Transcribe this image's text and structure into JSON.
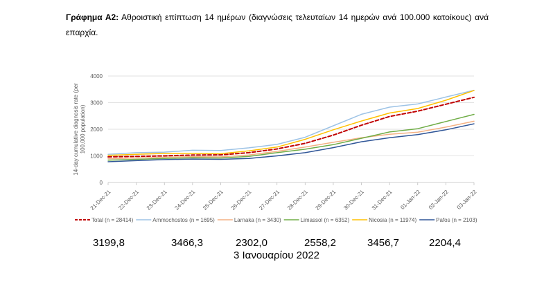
{
  "caption": {
    "label": "Γράφημα Α2:",
    "text": "Αθροιστική επίπτωση 14 ημέρων (διαγνώσεις τελευταίων 14 ημερών ανά 100.000 κατοίκους) ανά επαρχία."
  },
  "chart_data": {
    "type": "line",
    "ylabel": "14-day cumulative diagnosis rate (per 100,000 population)",
    "ylim": [
      0,
      4000
    ],
    "yticks": [
      "0",
      "1000",
      "2000",
      "3000",
      "4000"
    ],
    "grid": "horizontal",
    "legend_position": "bottom",
    "categories": [
      "21-Dec-21",
      "22-Dec-21",
      "23-Dec-21",
      "24-Dec-21",
      "25-Dec-21",
      "26-Dec-21",
      "27-Dec-21",
      "28-Dec-21",
      "29-Dec-21",
      "30-Dec-21",
      "31-Dec-21",
      "01-Jan-22",
      "02-Jan-22",
      "03-Jan-22"
    ],
    "series": [
      {
        "name": "Total (n = 28414)",
        "color": "#C00000",
        "dashed": true,
        "values": [
          960,
          980,
          1000,
          1030,
          1040,
          1120,
          1260,
          1470,
          1780,
          2150,
          2480,
          2680,
          2940,
          3200
        ]
      },
      {
        "name": "Ammochostos (n = 1695)",
        "color": "#9DC3E6",
        "dashed": false,
        "values": [
          1060,
          1120,
          1140,
          1210,
          1200,
          1300,
          1430,
          1700,
          2130,
          2560,
          2830,
          2950,
          3210,
          3466
        ]
      },
      {
        "name": "Larnaka (n = 3430)",
        "color": "#F4B183",
        "dashed": false,
        "values": [
          890,
          920,
          950,
          970,
          960,
          1030,
          1170,
          1330,
          1510,
          1680,
          1810,
          1890,
          2080,
          2302
        ]
      },
      {
        "name": "Limassol (n = 6352)",
        "color": "#70AD47",
        "dashed": false,
        "values": [
          840,
          870,
          900,
          930,
          920,
          980,
          1120,
          1250,
          1420,
          1660,
          1900,
          2020,
          2290,
          2558
        ]
      },
      {
        "name": "Nicosia (n = 11974)",
        "color": "#FFC000",
        "dashed": false,
        "values": [
          1020,
          1060,
          1090,
          1090,
          1080,
          1190,
          1330,
          1620,
          1980,
          2310,
          2610,
          2780,
          3090,
          3457
        ]
      },
      {
        "name": "Pafos (n = 2103)",
        "color": "#2F5597",
        "dashed": false,
        "values": [
          780,
          820,
          860,
          880,
          870,
          900,
          1000,
          1120,
          1310,
          1530,
          1680,
          1800,
          1980,
          2204
        ]
      }
    ]
  },
  "summary": {
    "values": [
      "3199,8",
      "3466,3",
      "2302,0",
      "2558,2",
      "3456,7",
      "2204,4"
    ],
    "date": "3 Ιανουαρίου 2022"
  }
}
